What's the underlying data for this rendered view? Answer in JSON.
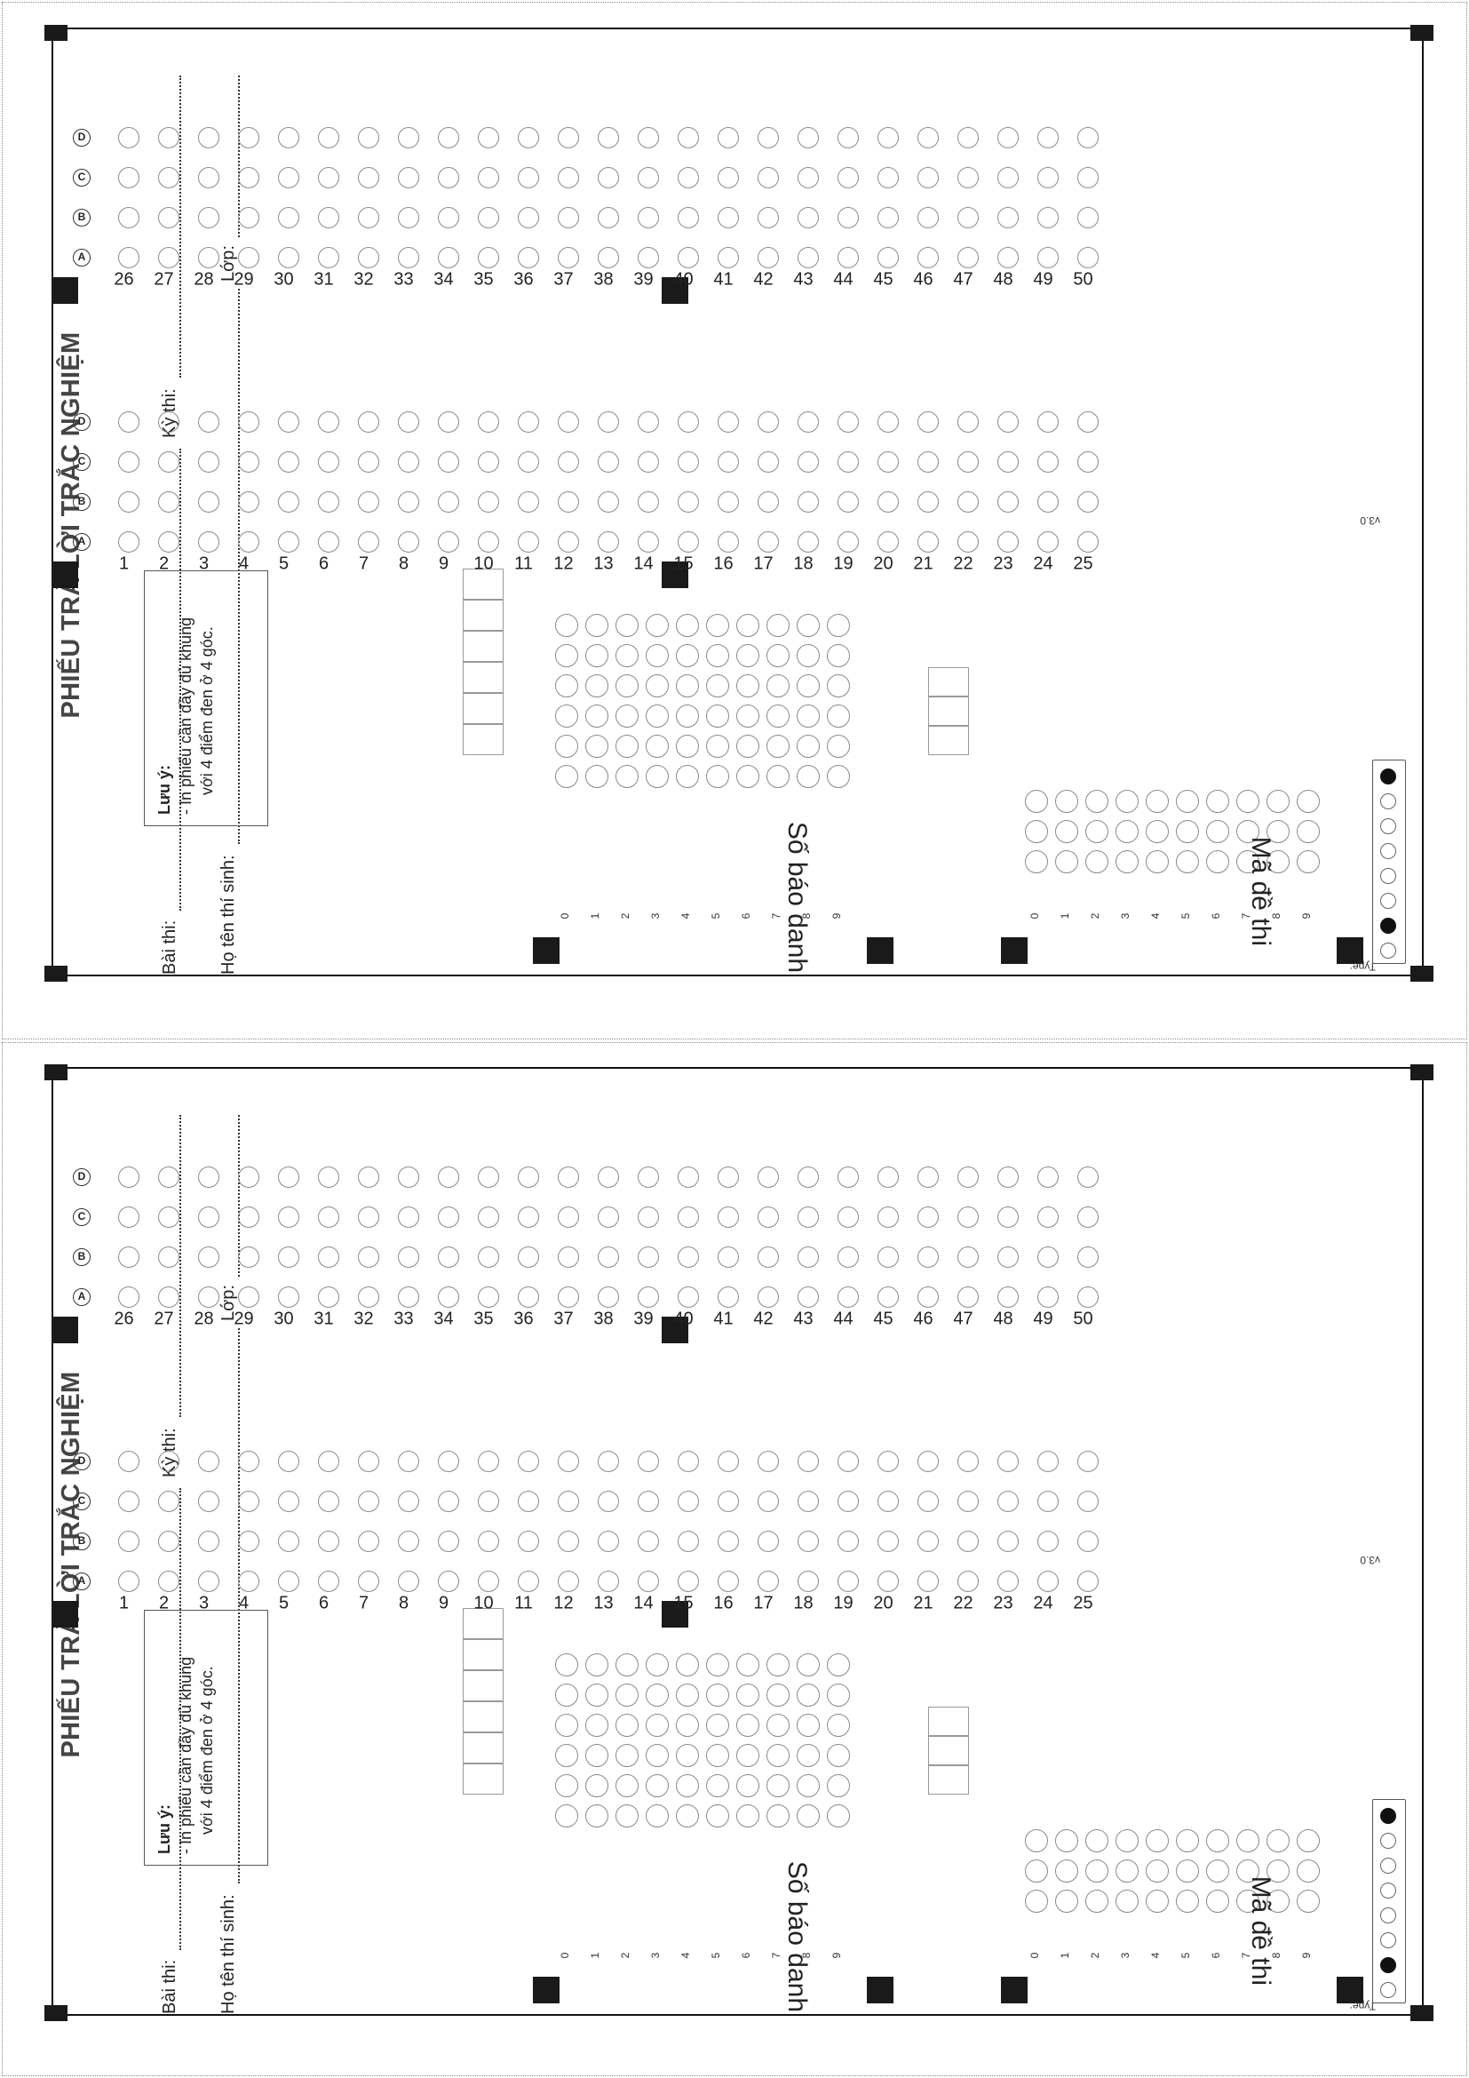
{
  "sheets": [
    {
      "title": "PHIẾU TRẢ LỜI TRẮC NGHIỆM",
      "fields": {
        "exam": "Bài thi:",
        "session": "Kỳ thi:",
        "name": "Họ tên thí sinh:",
        "class": "Lớp:"
      },
      "note": {
        "heading": "Lưu ý:",
        "line1": "- In phiếu cần đầy đủ khung",
        "line2": "với 4 điểm đen ở 4 góc."
      },
      "options": [
        "A",
        "B",
        "C",
        "D"
      ],
      "question_columns": [
        [
          1,
          25
        ],
        [
          26,
          50
        ]
      ],
      "student_id": {
        "label": "Số báo danh",
        "digit_count": 6,
        "digits": [
          "0",
          "1",
          "2",
          "3",
          "4",
          "5",
          "6",
          "7",
          "8",
          "9"
        ]
      },
      "test_code": {
        "label": "Mã đề thi",
        "digit_count": 3,
        "digits": [
          "0",
          "1",
          "2",
          "3",
          "4",
          "5",
          "6",
          "7",
          "8",
          "9"
        ]
      },
      "type": {
        "label": "Type:",
        "filled_positions": [
          1,
          7
        ],
        "bubble_count": 8
      },
      "version": "v3.0"
    },
    {
      "title": "PHIẾU TRẢ LỜI TRẮC NGHIỆM",
      "fields": {
        "exam": "Bài thi:",
        "session": "Kỳ thi:",
        "name": "Họ tên thí sinh:",
        "class": "Lớp:"
      },
      "note": {
        "heading": "Lưu ý:",
        "line1": "- In phiếu cần đầy đủ khung",
        "line2": "với 4 điểm đen ở 4 góc."
      },
      "options": [
        "A",
        "B",
        "C",
        "D"
      ],
      "question_columns": [
        [
          1,
          25
        ],
        [
          26,
          50
        ]
      ],
      "student_id": {
        "label": "Số báo danh",
        "digit_count": 6,
        "digits": [
          "0",
          "1",
          "2",
          "3",
          "4",
          "5",
          "6",
          "7",
          "8",
          "9"
        ]
      },
      "test_code": {
        "label": "Mã đề thi",
        "digit_count": 3,
        "digits": [
          "0",
          "1",
          "2",
          "3",
          "4",
          "5",
          "6",
          "7",
          "8",
          "9"
        ]
      },
      "type": {
        "label": "Type:",
        "filled_positions": [
          1,
          7
        ],
        "bubble_count": 8
      },
      "version": "v3.0"
    }
  ]
}
